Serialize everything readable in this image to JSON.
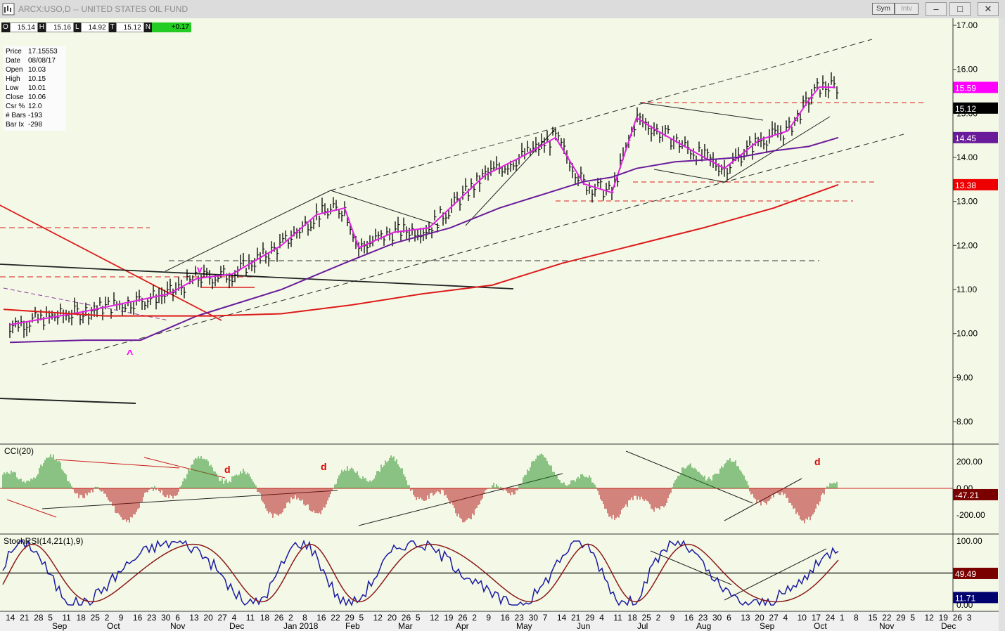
{
  "window": {
    "title": "ARCX:USO,D -- UNITED STATES OIL FUND",
    "sym_label": "Sym",
    "intv_label": "Intv",
    "min_label": "–",
    "max_label": "□",
    "close_label": "✕"
  },
  "ohlc": {
    "o_label": "O",
    "o": "15.14",
    "h_label": "H",
    "h": "15.16",
    "l_label": "L",
    "l": "14.92",
    "c_label": "T",
    "c": "15.12",
    "n_label": "N",
    "n": "+0.17"
  },
  "info": [
    {
      "label": "Price",
      "value": "17.15553"
    },
    {
      "label": "Date",
      "value": "08/08/17"
    },
    {
      "label": "Open",
      "value": "10.03"
    },
    {
      "label": "High",
      "value": "10.15"
    },
    {
      "label": "Low",
      "value": "10.01"
    },
    {
      "label": "Close",
      "value": "10.06"
    },
    {
      "label": "Csr %",
      "value": "12.0"
    },
    {
      "label": "# Bars",
      "value": "-193"
    },
    {
      "label": "Bar Ix",
      "value": "-298"
    }
  ],
  "colors": {
    "bg": "#f4f9e7",
    "sma_short": "#e020e0",
    "sma_mid": "#6a1b9a",
    "sma_long": "#dd1a1a",
    "cci_pos": "#1f8a1f",
    "cci_neg": "#b01010",
    "stoch_k": "#1a1aa0",
    "stoch_d": "#8b1a1a"
  },
  "chart_data": [
    {
      "type": "line",
      "title": "",
      "y_ticks": [
        "17.00",
        "16.00",
        "15.00",
        "14.00",
        "13.00",
        "12.00",
        "11.00",
        "10.00",
        "9.00",
        "8.00"
      ],
      "ylim": [
        7.55,
        17.2
      ],
      "x_ticks": [
        "14",
        "21",
        "28",
        "5",
        "11",
        "18",
        "25",
        "2",
        "9",
        "16",
        "23",
        "30",
        "6",
        "13",
        "20",
        "27",
        "4",
        "11",
        "18",
        "26",
        "2",
        "8",
        "16",
        "22",
        "29",
        "5",
        "12",
        "20",
        "26",
        "5",
        "12",
        "19",
        "26",
        "2",
        "9",
        "16",
        "23",
        "30",
        "7",
        "14",
        "21",
        "29",
        "4",
        "11",
        "18",
        "25",
        "2",
        "9",
        "16",
        "23",
        "30",
        "6",
        "13",
        "20",
        "27",
        "4",
        "10",
        "17",
        "24",
        "1",
        "8",
        "15",
        "22",
        "29",
        "5",
        "12",
        "19",
        "26",
        "3"
      ],
      "x_month_labels": [
        "Sep",
        "Oct",
        "Nov",
        "Dec",
        "Jan 2018",
        "Feb",
        "Mar",
        "Apr",
        "May",
        "Jun",
        "Jul",
        "Aug",
        "Sep",
        "Oct",
        "Nov",
        "Dec"
      ],
      "right_labels": [
        {
          "text": "15.59",
          "value": 15.59,
          "color": "#ff00ff"
        },
        {
          "text": "15.12",
          "value": 15.12,
          "color": "#000000"
        },
        {
          "text": "14.45",
          "value": 14.45,
          "color": "#6a1b9a"
        },
        {
          "text": "13.38",
          "value": 13.38,
          "color": "#ee0000"
        }
      ],
      "annotations": [
        "v",
        "^"
      ],
      "series": [
        {
          "values": [
            [
              14,
              10.2
            ],
            [
              120,
              10.5
            ],
            [
              240,
              10.9
            ],
            [
              280,
              11.25
            ],
            [
              330,
              11.35
            ],
            [
              400,
              12.0
            ],
            [
              450,
              12.7
            ],
            [
              490,
              12.85
            ],
            [
              510,
              11.95
            ],
            [
              560,
              12.3
            ],
            [
              610,
              12.4
            ],
            [
              640,
              12.85
            ],
            [
              690,
              13.6
            ],
            [
              740,
              14.0
            ],
            [
              790,
              14.45
            ],
            [
              830,
              13.4
            ],
            [
              870,
              13.2
            ],
            [
              905,
              14.9
            ],
            [
              935,
              14.6
            ],
            [
              990,
              14.1
            ],
            [
              1030,
              13.75
            ],
            [
              1080,
              14.4
            ],
            [
              1120,
              14.6
            ],
            [
              1150,
              15.3
            ],
            [
              1165,
              15.6
            ],
            [
              1188,
              15.59
            ]
          ]
        },
        {
          "values": [
            [
              14,
              9.8
            ],
            [
              120,
              9.85
            ],
            [
              200,
              9.85
            ],
            [
              280,
              10.4
            ],
            [
              400,
              11.0
            ],
            [
              490,
              11.6
            ],
            [
              560,
              12.05
            ],
            [
              640,
              12.4
            ],
            [
              710,
              12.85
            ],
            [
              780,
              13.2
            ],
            [
              830,
              13.45
            ],
            [
              870,
              13.55
            ],
            [
              905,
              13.75
            ],
            [
              960,
              13.9
            ],
            [
              1010,
              13.95
            ],
            [
              1050,
              14.0
            ],
            [
              1100,
              14.15
            ],
            [
              1150,
              14.25
            ],
            [
              1192,
              14.45
            ]
          ]
        },
        {
          "values": [
            [
              5,
              10.55
            ],
            [
              150,
              10.4
            ],
            [
              300,
              10.4
            ],
            [
              400,
              10.45
            ],
            [
              500,
              10.65
            ],
            [
              600,
              10.9
            ],
            [
              700,
              11.1
            ],
            [
              800,
              11.6
            ],
            [
              900,
              12.0
            ],
            [
              1000,
              12.4
            ],
            [
              1100,
              12.85
            ],
            [
              1192,
              13.38
            ]
          ]
        }
      ]
    },
    {
      "type": "bar",
      "title": "CCI(20)",
      "y_ticks": [
        "200.00",
        "0.00",
        "-200.00"
      ],
      "ylim": [
        -290,
        300
      ],
      "current_label": "-47.21",
      "annotations": [
        "d",
        "d",
        "d"
      ]
    },
    {
      "type": "line",
      "title": "StochRSI(14,21(1),9)",
      "y_ticks": [
        "100.00",
        "0.00"
      ],
      "ylim": [
        -5,
        108
      ],
      "current_labels": [
        "49.49",
        "11.71"
      ]
    }
  ]
}
